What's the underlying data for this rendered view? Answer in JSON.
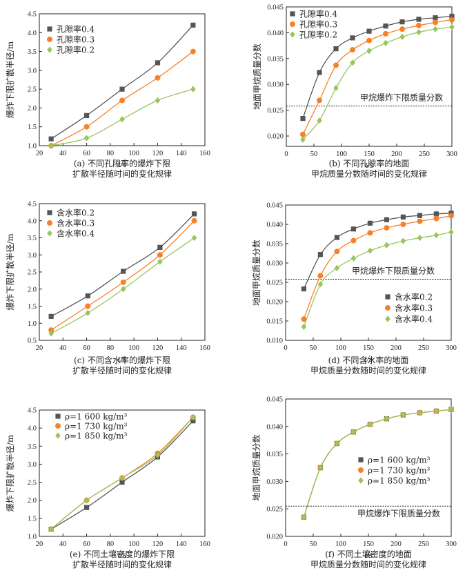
{
  "chart_data": [
    {
      "type": "line",
      "caption": [
        "(a) 不同孔隙率的爆炸下限",
        "扩散半径随时间的变化规律"
      ],
      "xlabel": "t/s",
      "ylabel": "爆炸下限扩散半径/m",
      "xlim": [
        20,
        160
      ],
      "ylim": [
        1.0,
        4.5
      ],
      "xticks": [
        "20",
        "40",
        "60",
        "80",
        "100",
        "120",
        "140",
        "160"
      ],
      "yticks": [
        "1.0",
        "1.5",
        "2.0",
        "2.5",
        "3.0",
        "3.5",
        "4.0",
        "4.5"
      ],
      "legend": "top-left",
      "series": [
        {
          "name": "孔隙率0.4",
          "color": "#555555",
          "marker": "square",
          "x": [
            30,
            60,
            90,
            120,
            150
          ],
          "y": [
            1.18,
            1.8,
            2.5,
            3.2,
            4.2
          ]
        },
        {
          "name": "孔隙率0.3",
          "color": "#f7812a",
          "marker": "circle",
          "x": [
            30,
            60,
            90,
            120,
            150
          ],
          "y": [
            1.0,
            1.5,
            2.2,
            2.8,
            3.5
          ]
        },
        {
          "name": "孔隙率0.2",
          "color": "#9ac45c",
          "marker": "diamond",
          "x": [
            30,
            60,
            90,
            120,
            150
          ],
          "y": [
            1.0,
            1.2,
            1.7,
            2.2,
            2.5
          ]
        }
      ]
    },
    {
      "type": "line",
      "caption": [
        "(b) 不同孔隙率的地面",
        "甲烷质量分数随时间的变化规律"
      ],
      "xlabel": "t/s",
      "ylabel": "地面甲烷质量分数",
      "xlim": [
        0,
        300
      ],
      "ylim": [
        0.018,
        0.045
      ],
      "xticks": [
        "0",
        "50",
        "100",
        "150",
        "200",
        "250",
        "300"
      ],
      "yticks": [
        "0.020",
        "0.025",
        "0.030",
        "0.035",
        "0.040",
        "0.045"
      ],
      "legend": "top-left",
      "threshold": {
        "value": 0.0258,
        "label": "甲烷爆炸下限质量分数"
      },
      "series": [
        {
          "name": "孔隙率0.4",
          "color": "#555555",
          "marker": "square",
          "x": [
            30,
            60,
            90,
            120,
            150,
            180,
            210,
            240,
            270,
            300
          ],
          "y": [
            0.0234,
            0.0323,
            0.0369,
            0.039,
            0.0403,
            0.0413,
            0.0421,
            0.0426,
            0.0429,
            0.0432
          ]
        },
        {
          "name": "孔隙率0.3",
          "color": "#f7812a",
          "marker": "circle",
          "x": [
            30,
            60,
            90,
            120,
            150,
            180,
            210,
            240,
            270,
            300
          ],
          "y": [
            0.0203,
            0.0269,
            0.0337,
            0.0367,
            0.0385,
            0.0398,
            0.0407,
            0.0414,
            0.042,
            0.0425
          ]
        },
        {
          "name": "孔隙率0.2",
          "color": "#9ac45c",
          "marker": "diamond",
          "x": [
            30,
            60,
            90,
            120,
            150,
            180,
            210,
            240,
            270,
            300
          ],
          "y": [
            0.0193,
            0.023,
            0.0293,
            0.0342,
            0.0365,
            0.038,
            0.0392,
            0.0401,
            0.0407,
            0.0411
          ]
        }
      ]
    },
    {
      "type": "line",
      "caption": [
        "(c) 不同含水率的爆炸下限",
        "扩散半径随时间的变化规律"
      ],
      "xlabel": "t/s",
      "ylabel": "爆炸下限扩散半径/m",
      "xlim": [
        20,
        160
      ],
      "ylim": [
        0.5,
        4.5
      ],
      "xticks": [
        "20",
        "40",
        "60",
        "80",
        "100",
        "120",
        "140",
        "160"
      ],
      "yticks": [
        "0.5",
        "1.0",
        "1.5",
        "2.0",
        "2.5",
        "3.0",
        "3.5",
        "4.0",
        "4.5"
      ],
      "legend": "top-left",
      "series": [
        {
          "name": "含水率0.2",
          "color": "#555555",
          "marker": "square",
          "x": [
            30,
            61,
            91,
            122,
            151
          ],
          "y": [
            1.2,
            1.8,
            2.52,
            3.22,
            4.2
          ]
        },
        {
          "name": "含水率0.3",
          "color": "#f7812a",
          "marker": "circle",
          "x": [
            30,
            61,
            91,
            122,
            151
          ],
          "y": [
            0.8,
            1.5,
            2.2,
            3.0,
            4.0
          ]
        },
        {
          "name": "含水率0.4",
          "color": "#9ac45c",
          "marker": "diamond",
          "x": [
            30,
            61,
            91,
            122,
            151
          ],
          "y": [
            0.7,
            1.3,
            2.0,
            2.8,
            3.5
          ]
        }
      ]
    },
    {
      "type": "line",
      "caption": [
        "(d) 不同含水率的地面",
        "甲烷质量分数随时间的变化规律"
      ],
      "xlabel": "t/s",
      "ylabel": "地面甲烷质量分数",
      "xlim": [
        0,
        300
      ],
      "ylim": [
        0.01,
        0.045
      ],
      "xticks": [
        "0",
        "50",
        "100",
        "150",
        "200",
        "250",
        "300"
      ],
      "yticks": [
        "0.010",
        "0.015",
        "0.020",
        "0.025",
        "0.030",
        "0.035",
        "0.040",
        "0.045"
      ],
      "legend": "bottom-right",
      "threshold": {
        "value": 0.0258,
        "label": "甲烷爆炸下限质量分数"
      },
      "series": [
        {
          "name": "含水率0.2",
          "color": "#555555",
          "marker": "square",
          "x": [
            33,
            63,
            93,
            123,
            153,
            183,
            213,
            243,
            273,
            300
          ],
          "y": [
            0.0233,
            0.0322,
            0.0366,
            0.0388,
            0.0403,
            0.0412,
            0.0419,
            0.0423,
            0.0427,
            0.0429
          ]
        },
        {
          "name": "含水率0.3",
          "color": "#f7812a",
          "marker": "circle",
          "x": [
            33,
            63,
            93,
            123,
            153,
            183,
            213,
            243,
            273,
            300
          ],
          "y": [
            0.0155,
            0.0267,
            0.033,
            0.0358,
            0.0378,
            0.0391,
            0.04,
            0.0408,
            0.0415,
            0.0422
          ]
        },
        {
          "name": "含水率0.4",
          "color": "#9ac45c",
          "marker": "diamond",
          "x": [
            33,
            63,
            93,
            123,
            153,
            183,
            213,
            243,
            273,
            300
          ],
          "y": [
            0.0135,
            0.0245,
            0.0287,
            0.0312,
            0.0332,
            0.0346,
            0.0357,
            0.0365,
            0.0372,
            0.038
          ]
        }
      ]
    },
    {
      "type": "line",
      "caption": [
        "(e) 不同土壤密度的爆炸下限",
        "扩散半径随时间的变化规律"
      ],
      "xlabel": "t/s",
      "ylabel": "爆炸下限扩散半径/m",
      "xlim": [
        20,
        160
      ],
      "ylim": [
        1.0,
        4.5
      ],
      "xticks": [
        "20",
        "40",
        "60",
        "80",
        "100",
        "120",
        "140",
        "160"
      ],
      "yticks": [
        "1.0",
        "1.5",
        "2.0",
        "2.5",
        "3.0",
        "3.5",
        "4.0",
        "4.5"
      ],
      "legend": "top-left",
      "series": [
        {
          "name": "ρ=1 600 kg/m³",
          "color": "#555555",
          "marker": "square",
          "x": [
            30,
            60,
            90,
            120,
            150
          ],
          "y": [
            1.2,
            1.8,
            2.5,
            3.2,
            4.2
          ]
        },
        {
          "name": "ρ=1 730 kg/m³",
          "color": "#f7812a",
          "marker": "circle",
          "x": [
            30,
            60,
            90,
            120,
            150
          ],
          "y": [
            1.2,
            2.0,
            2.62,
            3.3,
            4.3
          ]
        },
        {
          "name": "ρ=1 850 kg/m³",
          "color": "#9ac45c",
          "marker": "diamond",
          "x": [
            30,
            60,
            90,
            120,
            150
          ],
          "y": [
            1.2,
            2.0,
            2.62,
            3.25,
            4.3
          ]
        }
      ]
    },
    {
      "type": "line",
      "caption": [
        "(f) 不同土壤密度的地面",
        "甲烷质量分数随时间的变化规律"
      ],
      "xlabel": "t/s",
      "ylabel": "地面甲烷质量分数",
      "xlim": [
        0,
        300
      ],
      "ylim": [
        0.02,
        0.045
      ],
      "xticks": [
        "0",
        "50",
        "100",
        "150",
        "200",
        "250",
        "300"
      ],
      "yticks": [
        "0.020",
        "0.025",
        "0.030",
        "0.035",
        "0.040",
        "0.045"
      ],
      "legend": "center-right",
      "threshold": {
        "value": 0.0255,
        "label": "甲烷爆炸下限质量分数"
      },
      "series": [
        {
          "name": "ρ=1 600 kg/m³",
          "color": "#555555",
          "marker": "square",
          "x": [
            33,
            63,
            93,
            123,
            153,
            183,
            213,
            243,
            273,
            300
          ],
          "y": [
            0.0235,
            0.0325,
            0.0369,
            0.039,
            0.0404,
            0.0414,
            0.0421,
            0.0425,
            0.0428,
            0.0431
          ]
        },
        {
          "name": "ρ=1 730 kg/m³",
          "color": "#f7812a",
          "marker": "circle",
          "x": [
            33,
            63,
            93,
            123,
            153,
            183,
            213,
            243,
            273,
            300
          ],
          "y": [
            0.0235,
            0.0325,
            0.0369,
            0.039,
            0.0404,
            0.0414,
            0.0421,
            0.0425,
            0.0428,
            0.0431
          ]
        },
        {
          "name": "ρ=1 850 kg/m³",
          "color": "#9ac45c",
          "marker": "diamond",
          "x": [
            33,
            63,
            93,
            123,
            153,
            183,
            213,
            243,
            273,
            300
          ],
          "y": [
            0.0235,
            0.0325,
            0.0369,
            0.039,
            0.0404,
            0.0414,
            0.0421,
            0.0425,
            0.0428,
            0.0431
          ]
        }
      ]
    }
  ]
}
